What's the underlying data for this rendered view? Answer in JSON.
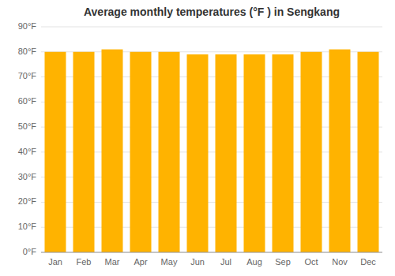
{
  "chart_data": {
    "type": "bar",
    "title": "Average monthly temperatures (°F ) in Sengkang",
    "categories": [
      "Jan",
      "Feb",
      "Mar",
      "Apr",
      "May",
      "Jun",
      "Jul",
      "Aug",
      "Sep",
      "Oct",
      "Nov",
      "Dec"
    ],
    "values": [
      80,
      80,
      81,
      80,
      80,
      79,
      79,
      79,
      79,
      80,
      81,
      80
    ],
    "color": "#FFB300",
    "ylim": [
      0,
      90
    ],
    "yticks": [
      {
        "value": 0,
        "label": "0°F"
      },
      {
        "value": 10,
        "label": "10°F"
      },
      {
        "value": 20,
        "label": "20°F"
      },
      {
        "value": 30,
        "label": "30°F"
      },
      {
        "value": 40,
        "label": "40°F"
      },
      {
        "value": 50,
        "label": "50°F"
      },
      {
        "value": 60,
        "label": "60°F"
      },
      {
        "value": 70,
        "label": "70°F"
      },
      {
        "value": 80,
        "label": "80°F"
      },
      {
        "value": 90,
        "label": "90°F"
      }
    ],
    "grid": true
  }
}
